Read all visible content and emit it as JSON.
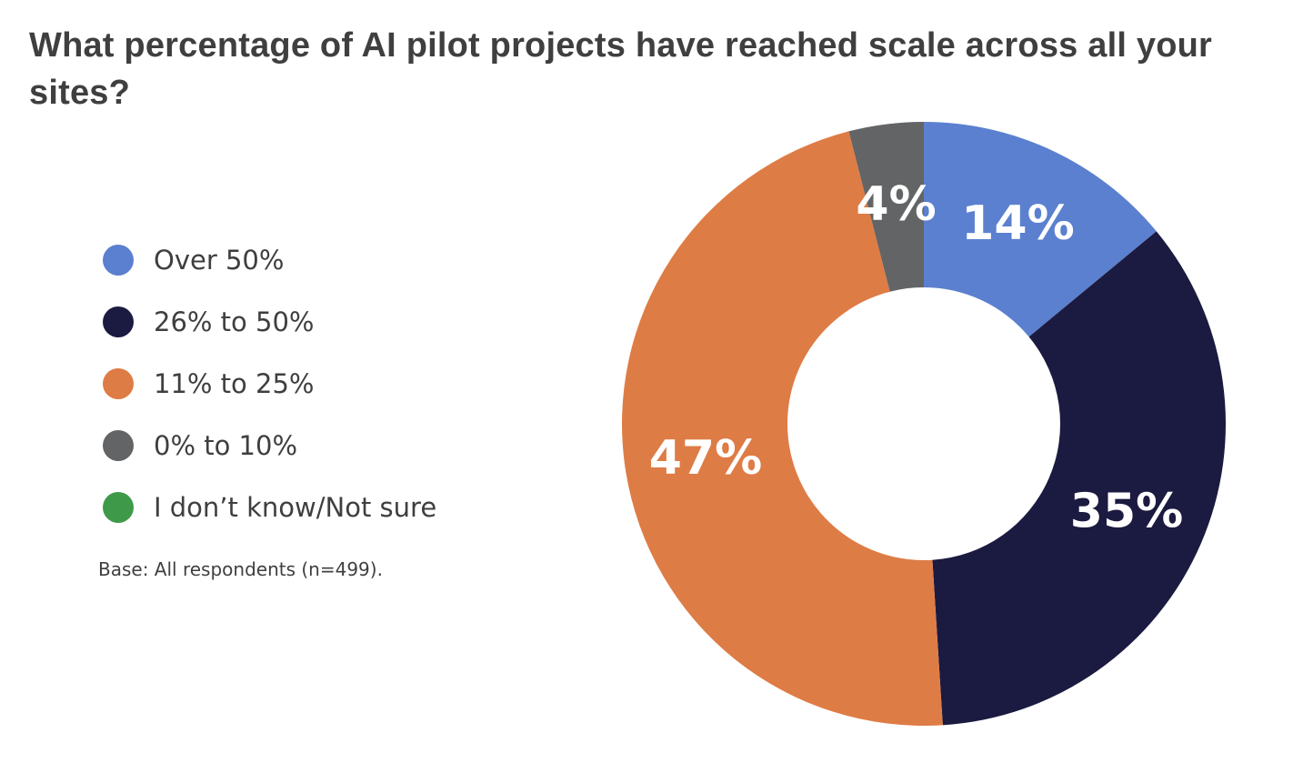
{
  "chart_data": {
    "type": "pie",
    "style": "donut",
    "title": "What percentage of AI pilot projects have reached scale across all your sites?",
    "categories": [
      "Over 50%",
      "26% to 50%",
      "11% to 25%",
      "0% to 10%",
      "I don’t know/Not sure"
    ],
    "values": [
      14,
      35,
      47,
      4,
      0
    ],
    "data_labels": [
      "14%",
      "35%",
      "47%",
      "4%",
      ""
    ],
    "colors": [
      "#5B80CF",
      "#1B1A40",
      "#DE7C45",
      "#636466",
      "#3E9A48"
    ],
    "legend_position": "left",
    "note": "Base: All respondents (n=499)."
  }
}
